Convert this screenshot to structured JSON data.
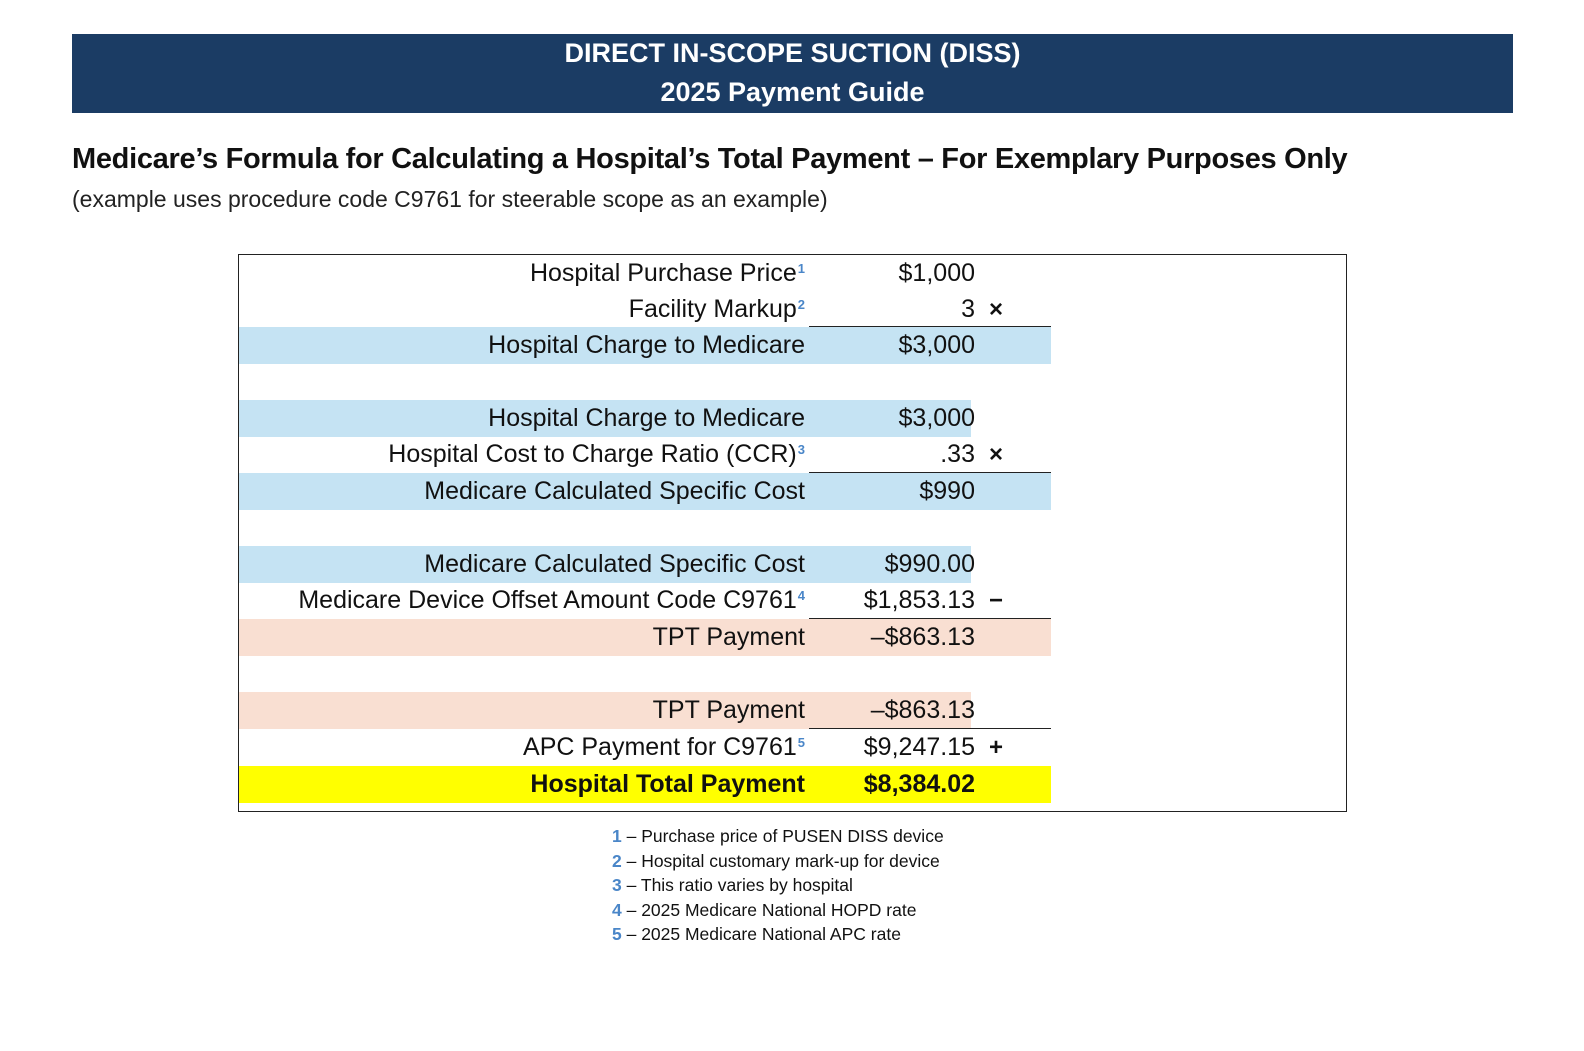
{
  "banner": {
    "line1": "DIRECT IN-SCOPE SUCTION (DISS)",
    "line2": "2025 Payment Guide"
  },
  "heading": "Medicare’s Formula for Calculating a Hospital’s Total Payment – For Exemplary Purposes Only",
  "subheading": "(example uses procedure code C9761 for steerable scope as an example)",
  "colors": {
    "banner": "#1b3c64",
    "blue_highlight": "#c5e3f3",
    "peach_highlight": "#f9dfd2",
    "yellow_highlight": "#ffff00",
    "footnote_number": "#4a86c8"
  },
  "calculation": {
    "block1": {
      "purchase_price_label": "Hospital Purchase Price",
      "purchase_price_ref": "1",
      "purchase_price_value": "$1,000",
      "markup_label": "Facility Markup",
      "markup_ref": "2",
      "markup_value": "3",
      "markup_op": "×",
      "charge_label": "Hospital Charge to Medicare",
      "charge_value": "$3,000"
    },
    "block2": {
      "charge_label": "Hospital Charge to Medicare",
      "charge_value": "$3,000",
      "ccr_label": "Hospital Cost to Charge Ratio (CCR)",
      "ccr_ref": "3",
      "ccr_value": ".33",
      "ccr_op": "×",
      "cost_label": "Medicare Calculated Specific Cost",
      "cost_value": "$990"
    },
    "block3": {
      "cost_label": "Medicare Calculated Specific Cost",
      "cost_value": "$990.00",
      "offset_label": "Medicare Device Offset Amount Code C9761",
      "offset_ref": "4",
      "offset_value": "$1,853.13",
      "offset_op": "−",
      "tpt_label": "TPT Payment",
      "tpt_value": "–$863.13"
    },
    "block4": {
      "tpt_label": "TPT Payment",
      "tpt_value": "–$863.13",
      "apc_label": "APC Payment for C9761",
      "apc_ref": "5",
      "apc_value": "$9,247.15",
      "apc_op": "+",
      "total_label": "Hospital Total Payment",
      "total_value": "$8,384.02"
    }
  },
  "footnotes": [
    {
      "num": "1",
      "text": " – Purchase price of PUSEN DISS device"
    },
    {
      "num": "2",
      "text": " – Hospital customary mark-up for device"
    },
    {
      "num": "3",
      "text": " – This ratio varies by hospital"
    },
    {
      "num": "4",
      "text": " – 2025 Medicare National HOPD rate"
    },
    {
      "num": "5",
      "text": " – 2025 Medicare National APC rate"
    }
  ]
}
